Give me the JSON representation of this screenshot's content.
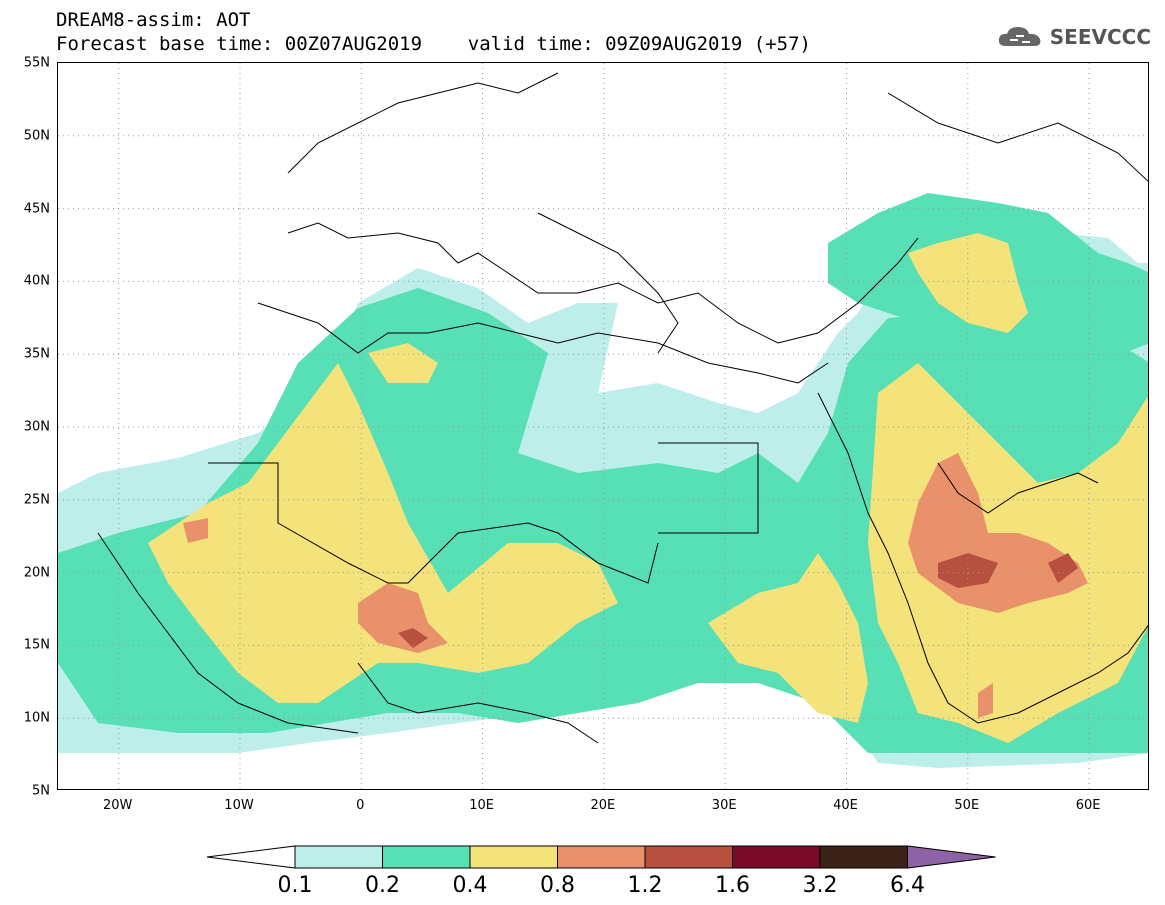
{
  "header": {
    "model_line": "DREAM8-assim: AOT",
    "time_line": "Forecast base time: 00Z07AUG2019    valid time: 09Z09AUG2019 (+57)",
    "logo_text": "SEEVCCC"
  },
  "axes": {
    "lat_labels": [
      "55N",
      "50N",
      "45N",
      "40N",
      "35N",
      "30N",
      "25N",
      "20N",
      "15N",
      "10N",
      "5N"
    ],
    "lon_labels": [
      "20W",
      "10W",
      "0",
      "10E",
      "20E",
      "30E",
      "40E",
      "50E",
      "60E"
    ]
  },
  "colorbar": {
    "tick_labels": [
      "0.1",
      "0.2",
      "0.4",
      "0.8",
      "1.2",
      "1.6",
      "3.2",
      "6.4"
    ],
    "colors": [
      "#ffffff",
      "#bdeee9",
      "#57e0b6",
      "#f4e27a",
      "#e8916a",
      "#b7503e",
      "#7a0a2a",
      "#3a2216",
      "#8e63a6"
    ]
  },
  "map": {
    "grid_style": "dotted",
    "colors": {
      "aot_0_1": "#bdeee9",
      "aot_0_2": "#57e0b6",
      "aot_0_4": "#f4e27a",
      "aot_0_8": "#e8916a",
      "aot_1_2": "#b7503e",
      "aot_1_6": "#7a0a2a"
    }
  }
}
